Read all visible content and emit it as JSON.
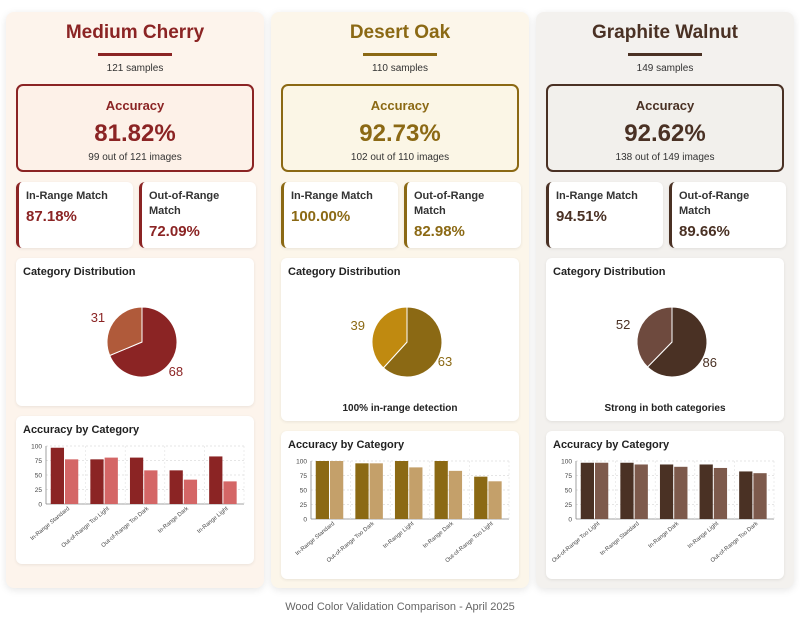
{
  "footer": "Wood Color Validation Comparison - April 2025",
  "panels": [
    {
      "name": "Medium Cherry",
      "samples": "121 samples",
      "colors": {
        "primary": "#8b2424",
        "secondary": "#d46666",
        "pie_minor": "#b05a3a",
        "panel_bg": "#fdf4ec",
        "acc_bg": "#fdf1e8"
      },
      "accuracy": {
        "label": "Accuracy",
        "value": "81.82%",
        "detail": "99 out of 121 images"
      },
      "in_range": {
        "label": "In-Range Match",
        "value": "87.18%"
      },
      "out_range": {
        "label": "Out-of-Range Match",
        "value": "72.09%"
      },
      "distribution": {
        "title": "Category Distribution",
        "values": [
          68,
          31
        ],
        "labels": [
          "68",
          "31"
        ],
        "note": ""
      },
      "bar_title": "Accuracy by Category",
      "chart_data": {
        "type": "bar",
        "categories": [
          "In-Range Standard",
          "Out-of-Range Too Light",
          "Out-of-Range Too Dark",
          "In-Range Dark",
          "In-Range Light"
        ],
        "series": [
          {
            "values": [
              97,
              77,
              80,
              58,
              82
            ]
          },
          {
            "values": [
              77,
              80,
              58,
              42,
              39
            ]
          }
        ],
        "ylim": [
          0,
          100
        ],
        "yticks": [
          "0",
          "25",
          "50",
          "75",
          "100"
        ]
      }
    },
    {
      "name": "Desert Oak",
      "samples": "110 samples",
      "colors": {
        "primary": "#8b6914",
        "secondary": "#c4a06a",
        "pie_minor": "#c08a10",
        "panel_bg": "#fcf6ea",
        "acc_bg": "#fbf6e6"
      },
      "accuracy": {
        "label": "Accuracy",
        "value": "92.73%",
        "detail": "102 out of 110 images"
      },
      "in_range": {
        "label": "In-Range Match",
        "value": "100.00%"
      },
      "out_range": {
        "label": "Out-of-Range Match",
        "value": "82.98%"
      },
      "distribution": {
        "title": "Category Distribution",
        "values": [
          63,
          39
        ],
        "labels": [
          "63",
          "39"
        ],
        "note": "100% in-range detection"
      },
      "bar_title": "Accuracy by Category",
      "chart_data": {
        "type": "bar",
        "categories": [
          "In-Range Standard",
          "Out-of-Range Too Dark",
          "In-Range Light",
          "In-Range Dark",
          "Out-of-Range Too Light"
        ],
        "series": [
          {
            "values": [
              100,
              96,
              100,
              100,
              73
            ]
          },
          {
            "values": [
              100,
              96,
              89,
              83,
              65
            ]
          }
        ],
        "ylim": [
          0,
          100
        ],
        "yticks": [
          "0",
          "25",
          "50",
          "75",
          "100"
        ]
      }
    },
    {
      "name": "Graphite Walnut",
      "samples": "149 samples",
      "colors": {
        "primary": "#4a3124",
        "secondary": "#7d5a4c",
        "pie_minor": "#6e4a3e",
        "panel_bg": "#f3f1ee",
        "acc_bg": "#f2f0ec"
      },
      "accuracy": {
        "label": "Accuracy",
        "value": "92.62%",
        "detail": "138 out of 149 images"
      },
      "in_range": {
        "label": "In-Range Match",
        "value": "94.51%"
      },
      "out_range": {
        "label": "Out-of-Range Match",
        "value": "89.66%"
      },
      "distribution": {
        "title": "Category Distribution",
        "values": [
          86,
          52
        ],
        "labels": [
          "86",
          "52"
        ],
        "note": "Strong in both categories"
      },
      "bar_title": "Accuracy by Category",
      "chart_data": {
        "type": "bar",
        "categories": [
          "Out-of-Range Too Light",
          "In-Range Standard",
          "In-Range Dark",
          "In-Range Light",
          "Out-of-Range Too Dark"
        ],
        "series": [
          {
            "values": [
              97,
              97,
              94,
              94,
              82
            ]
          },
          {
            "values": [
              97,
              94,
              90,
              88,
              79
            ]
          }
        ],
        "ylim": [
          0,
          100
        ],
        "yticks": [
          "0",
          "25",
          "50",
          "75",
          "100"
        ]
      }
    }
  ]
}
